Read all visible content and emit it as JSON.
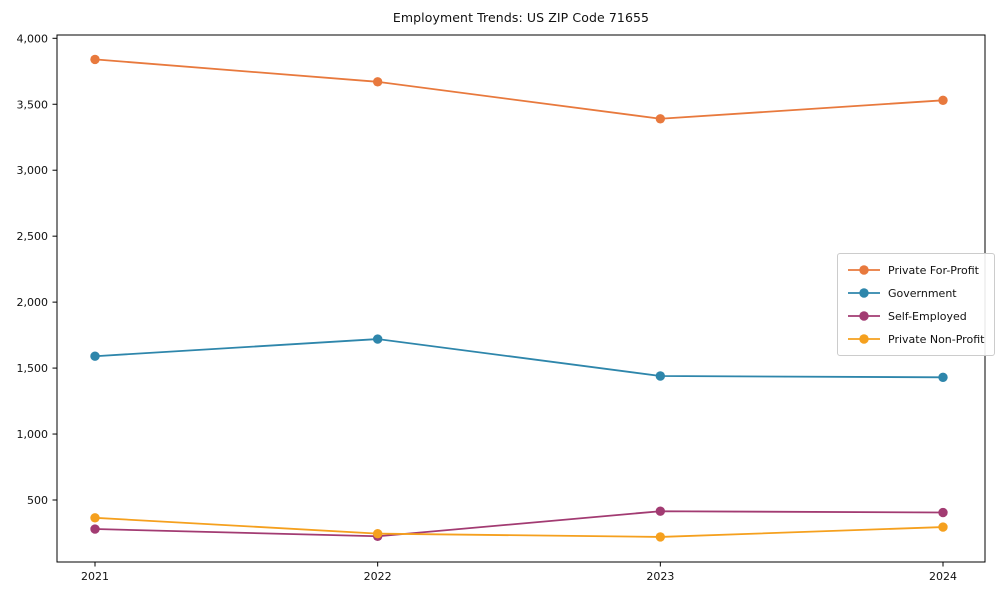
{
  "chart_data": {
    "type": "line",
    "title": "Employment Trends: US ZIP Code 71655",
    "xlabel": "",
    "ylabel": "",
    "categories": [
      "2021",
      "2022",
      "2023",
      "2024"
    ],
    "series": [
      {
        "name": "Private For-Profit",
        "color": "#E8793D",
        "values": [
          3840,
          3670,
          3390,
          3530
        ]
      },
      {
        "name": "Government",
        "color": "#2E86AB",
        "values": [
          1590,
          1720,
          1440,
          1430
        ]
      },
      {
        "name": "Self-Employed",
        "color": "#A23B72",
        "values": [
          280,
          225,
          415,
          405
        ]
      },
      {
        "name": "Private Non-Profit",
        "color": "#F5A01E",
        "values": [
          365,
          245,
          220,
          295
        ]
      }
    ],
    "ylim": [
      30,
      4025
    ],
    "yticks": [
      500,
      1000,
      1500,
      2000,
      2500,
      3000,
      3500,
      4000
    ],
    "ytick_labels": [
      "500",
      "1,000",
      "1,500",
      "2,000",
      "2,500",
      "3,000",
      "3,500",
      "4,000"
    ],
    "grid": false,
    "legend_position": "center-right",
    "marker": "circle",
    "axis_color": "#000000",
    "text_color": "#111111"
  }
}
